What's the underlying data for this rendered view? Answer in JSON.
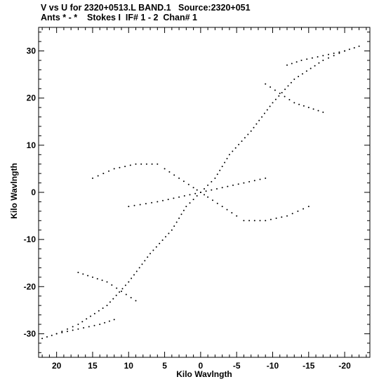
{
  "header": {
    "title": "V vs U for 2320+0513.L BAND.1   Source:2320+051",
    "subtitle": "Ants * - *    Stokes I  IF# 1 - 2  Chan# 1"
  },
  "chart_data": {
    "type": "scatter",
    "title": "V vs U for 2320+0513.L BAND.1   Source:2320+051",
    "subtitle": "Ants * - *    Stokes I  IF# 1 - 2  Chan# 1",
    "xlabel": "Kilo Wavlngth",
    "ylabel": "Kilo Wavlngth",
    "xlim": [
      22.5,
      -23.5
    ],
    "ylim": [
      -35,
      35
    ],
    "x_reversed": true,
    "xticks": [
      20,
      15,
      10,
      5,
      0,
      -5,
      -10,
      -15,
      -20
    ],
    "yticks": [
      30,
      20,
      10,
      0,
      -10,
      -20,
      -30
    ],
    "grid": false,
    "marker_color": "#000000",
    "tracks": [
      {
        "name": "",
        "points": [
          [
            22,
            -31
          ],
          [
            20,
            -30
          ],
          [
            17,
            -28
          ],
          [
            13,
            -24
          ],
          [
            10,
            -19
          ],
          [
            7,
            -13
          ],
          [
            4,
            -8
          ],
          [
            2,
            -3
          ],
          [
            0,
            0
          ],
          [
            -2,
            3
          ],
          [
            -4,
            8
          ],
          [
            -7,
            13
          ],
          [
            -10,
            19
          ],
          [
            -13,
            24
          ],
          [
            -17,
            28
          ],
          [
            -20,
            30
          ],
          [
            -22,
            31
          ]
        ]
      },
      {
        "name": "",
        "points": [
          [
            5,
            5
          ],
          [
            3,
            3
          ],
          [
            1,
            1
          ],
          [
            0,
            0
          ],
          [
            -1,
            -1
          ],
          [
            -3,
            -3
          ],
          [
            -5,
            -5
          ]
        ]
      },
      {
        "name": "",
        "points": [
          [
            10,
            -3
          ],
          [
            6,
            -2
          ],
          [
            3,
            -1
          ],
          [
            0,
            0
          ],
          [
            -3,
            1
          ],
          [
            -6,
            2
          ],
          [
            -9,
            3
          ]
        ]
      },
      {
        "name": "",
        "points": [
          [
            -9,
            23
          ],
          [
            -11,
            21
          ],
          [
            -13,
            19
          ],
          [
            -15,
            18
          ],
          [
            -17,
            17
          ]
        ]
      },
      {
        "name": "",
        "points": [
          [
            -12,
            27
          ],
          [
            -14,
            28
          ],
          [
            -17,
            29
          ],
          [
            -20,
            30
          ]
        ]
      },
      {
        "name": "",
        "points": [
          [
            9,
            -23
          ],
          [
            11,
            -21
          ],
          [
            13,
            -19
          ],
          [
            15,
            -18
          ],
          [
            17,
            -17
          ]
        ]
      },
      {
        "name": "",
        "points": [
          [
            12,
            -27
          ],
          [
            14,
            -28
          ],
          [
            17,
            -29
          ],
          [
            20,
            -30
          ]
        ]
      },
      {
        "name": "",
        "points": [
          [
            6,
            6
          ],
          [
            9,
            6
          ],
          [
            12,
            5
          ],
          [
            15,
            3
          ]
        ]
      },
      {
        "name": "",
        "points": [
          [
            -6,
            -6
          ],
          [
            -9,
            -6
          ],
          [
            -12,
            -5
          ],
          [
            -15,
            -3
          ]
        ]
      }
    ]
  }
}
